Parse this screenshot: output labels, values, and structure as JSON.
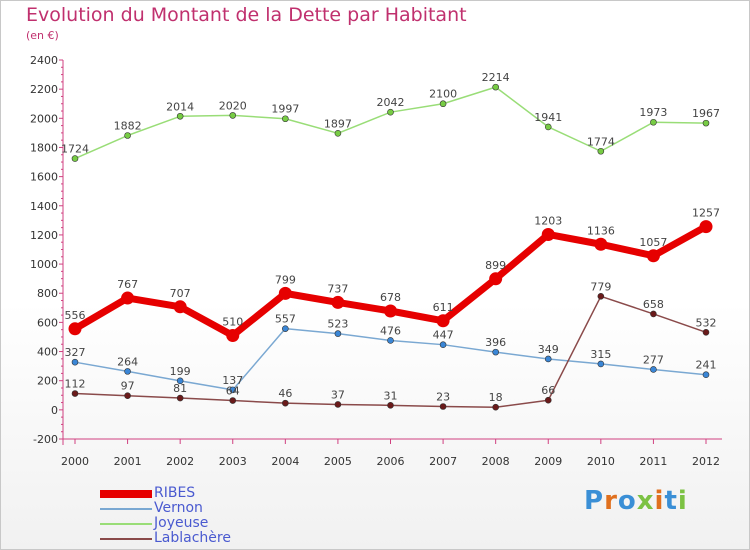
{
  "title": "Evolution du Montant de la Dette par Habitant",
  "subtitle": "(en €)",
  "logo": {
    "text": "Proxiti",
    "colors": [
      "#3a8fd6",
      "#e0701e",
      "#3a8fd6",
      "#7cc243",
      "#e0701e",
      "#3a8fd6",
      "#7cc243"
    ]
  },
  "chart_data": {
    "type": "line",
    "title": "Evolution du Montant de la Dette par Habitant",
    "subtitle": "(en €)",
    "x": [
      "2000",
      "2001",
      "2002",
      "2003",
      "2004",
      "2005",
      "2006",
      "2007",
      "2008",
      "2009",
      "2010",
      "2011",
      "2012"
    ],
    "ylim": [
      -200,
      2400
    ],
    "yticks": [
      -200,
      0,
      200,
      400,
      600,
      800,
      1000,
      1200,
      1400,
      1600,
      1800,
      2000,
      2200,
      2400
    ],
    "grid": false,
    "legend_position": "bottom-left",
    "series": [
      {
        "name": "RIBES",
        "color": "#e60000",
        "marker_color": "#e60000",
        "values": [
          556,
          767,
          707,
          510,
          799,
          737,
          678,
          611,
          899,
          1203,
          1136,
          1057,
          1257
        ]
      },
      {
        "name": "Vernon",
        "color": "#7aa8d2",
        "marker_color": "#3a86d6",
        "values": [
          327,
          264,
          199,
          137,
          557,
          523,
          476,
          447,
          396,
          349,
          315,
          277,
          241
        ]
      },
      {
        "name": "Joyeuse",
        "color": "#99dd77",
        "marker_color": "#77cc44",
        "values": [
          1724,
          1882,
          2014,
          2020,
          1997,
          1897,
          2042,
          2100,
          2214,
          1941,
          1774,
          1973,
          1967
        ]
      },
      {
        "name": "Lablachère",
        "color": "#8a4a4a",
        "marker_color": "#6a1a1a",
        "values": [
          112,
          97,
          81,
          64,
          46,
          37,
          31,
          23,
          18,
          66,
          779,
          658,
          532
        ]
      }
    ]
  }
}
